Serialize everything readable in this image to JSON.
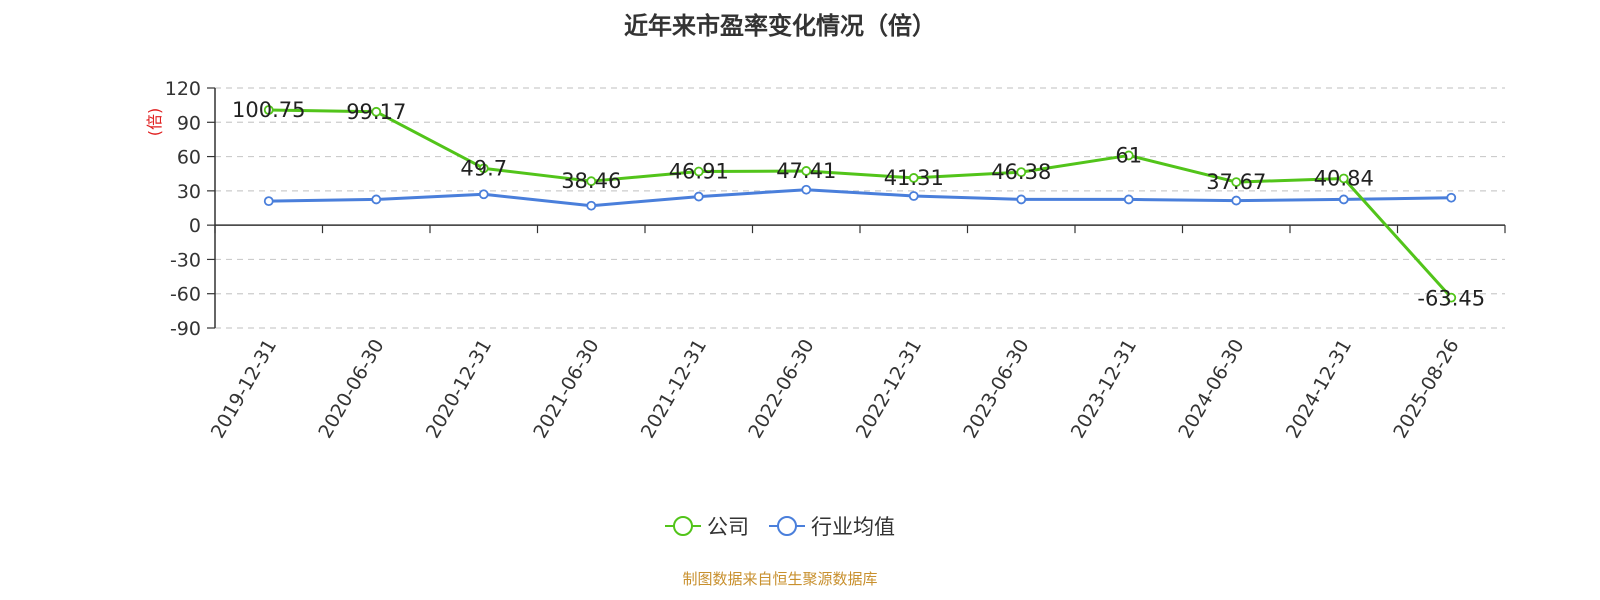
{
  "chart_data": {
    "type": "line",
    "title": "近年来市盈率变化情况（倍）",
    "ylabel": "(倍)",
    "xlabel": "",
    "categories": [
      "2019-12-31",
      "2020-06-30",
      "2020-12-31",
      "2021-06-30",
      "2021-12-31",
      "2022-06-30",
      "2022-12-31",
      "2023-06-30",
      "2023-12-31",
      "2024-06-30",
      "2024-12-31",
      "2025-08-26"
    ],
    "ylim": [
      -90,
      120
    ],
    "yticks": [
      120,
      90,
      60,
      30,
      0,
      -30,
      -60,
      -90
    ],
    "grid": true,
    "legend_position": "bottom-center",
    "series": [
      {
        "name": "公司",
        "color": "#52c41a",
        "values": [
          100.75,
          99.17,
          49.7,
          38.46,
          46.91,
          47.41,
          41.31,
          46.38,
          61,
          37.67,
          40.84,
          -63.45
        ],
        "data_labels": [
          "100.75",
          "99.17",
          "49.7",
          "38.46",
          "46.91",
          "47.41",
          "41.31",
          "46.38",
          "61",
          "37.67",
          "40.84",
          "-63.45"
        ]
      },
      {
        "name": "行业均值",
        "color": "#4a7fdb",
        "values": [
          21,
          22.5,
          27,
          17,
          25,
          31,
          25.5,
          22.5,
          22.5,
          21.5,
          22.5,
          24
        ]
      }
    ]
  },
  "footer": {
    "source": "制图数据来自恒生聚源数据库"
  },
  "colors": {
    "ylabel": "#e02020",
    "grid": "#cccccc",
    "axis": "#333333"
  }
}
